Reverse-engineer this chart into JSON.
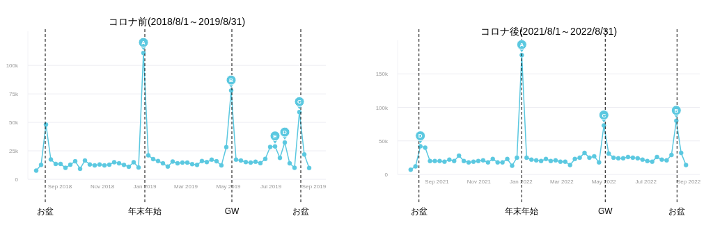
{
  "chart_data": [
    {
      "type": "line",
      "title": "コロナ前(2018/8/1～2019/8/31)",
      "grid": "y",
      "marker": "circle",
      "line_style": "solid",
      "xlim": [
        "2018-07-17",
        "2019-09-18"
      ],
      "ylim": [
        0,
        130000
      ],
      "xticks": [
        {
          "value": "2018-09-01",
          "label": "Sep 2018"
        },
        {
          "value": "2018-11-01",
          "label": "Nov 2018"
        },
        {
          "value": "2019-01-01",
          "label": "Jan 2019"
        },
        {
          "value": "2019-03-01",
          "label": "Mar 2019"
        },
        {
          "value": "2019-05-01",
          "label": "May 2019"
        },
        {
          "value": "2019-07-01",
          "label": "Jul 2019"
        },
        {
          "value": "2019-09-01",
          "label": "Sep 2019"
        }
      ],
      "yticks": [
        {
          "value": 0,
          "label": "0"
        },
        {
          "value": 25000,
          "label": "25k"
        },
        {
          "value": 50000,
          "label": "50k"
        },
        {
          "value": 75000,
          "label": "75k"
        },
        {
          "value": 100000,
          "label": "100k"
        }
      ],
      "x": [
        "2018-07-29",
        "2018-08-05",
        "2018-08-12",
        "2018-08-19",
        "2018-08-26",
        "2018-09-02",
        "2018-09-09",
        "2018-09-16",
        "2018-09-23",
        "2018-09-30",
        "2018-10-07",
        "2018-10-14",
        "2018-10-21",
        "2018-10-28",
        "2018-11-04",
        "2018-11-11",
        "2018-11-18",
        "2018-11-25",
        "2018-12-02",
        "2018-12-09",
        "2018-12-16",
        "2018-12-23",
        "2018-12-30",
        "2019-01-06",
        "2019-01-13",
        "2019-01-20",
        "2019-01-27",
        "2019-02-03",
        "2019-02-10",
        "2019-02-17",
        "2019-02-24",
        "2019-03-03",
        "2019-03-10",
        "2019-03-17",
        "2019-03-24",
        "2019-03-31",
        "2019-04-07",
        "2019-04-14",
        "2019-04-21",
        "2019-04-28",
        "2019-05-05",
        "2019-05-12",
        "2019-05-19",
        "2019-05-26",
        "2019-06-02",
        "2019-06-09",
        "2019-06-16",
        "2019-06-23",
        "2019-06-30",
        "2019-07-07",
        "2019-07-14",
        "2019-07-21",
        "2019-07-28",
        "2019-08-04",
        "2019-08-11",
        "2019-08-18",
        "2019-08-25"
      ],
      "series": [
        {
          "color": "#5bc8e0",
          "values": [
            7600,
            12600,
            48000,
            17400,
            13500,
            13500,
            10000,
            12800,
            15800,
            9200,
            16500,
            13000,
            12200,
            13000,
            12200,
            12800,
            15000,
            14000,
            12600,
            11000,
            15000,
            10300,
            111000,
            21000,
            17700,
            16000,
            14000,
            11200,
            15600,
            14000,
            14700,
            14700,
            13300,
            12600,
            16000,
            15100,
            17200,
            15800,
            12200,
            28200,
            78000,
            17200,
            16500,
            15100,
            14700,
            15400,
            14200,
            17900,
            28400,
            28900,
            18800,
            32300,
            14000,
            10100,
            59000,
            21800,
            9900
          ]
        }
      ],
      "ref_lines": [
        {
          "axis": "x",
          "value": "2018-08-11",
          "label": "お盆",
          "line_style": "dashed",
          "color": "#000000"
        },
        {
          "axis": "x",
          "value": "2019-01-01",
          "label": "年末年始",
          "line_style": "dashed",
          "color": "#000000"
        },
        {
          "axis": "x",
          "value": "2019-05-06",
          "label": "GW",
          "line_style": "dashed",
          "color": "#000000"
        },
        {
          "axis": "x",
          "value": "2019-08-13",
          "label": "お盆",
          "line_style": "dashed",
          "color": "#000000"
        }
      ],
      "annotations": [
        {
          "text": "A",
          "x": "2018-12-30",
          "y": 111000
        },
        {
          "text": "B",
          "x": "2019-05-05",
          "y": 78000
        },
        {
          "text": "E",
          "x": "2019-07-07",
          "y": 28900
        },
        {
          "text": "D",
          "x": "2019-07-21",
          "y": 32300
        },
        {
          "text": "C",
          "x": "2019-08-11",
          "y": 59000
        }
      ]
    },
    {
      "type": "line",
      "title": "コロナ後(2021/8/1～2022/8/31)",
      "grid": "y",
      "marker": "circle",
      "line_style": "solid",
      "xlim": [
        "2021-07-06",
        "2022-09-17"
      ],
      "ylim": [
        0,
        200000
      ],
      "xticks": [
        {
          "value": "2021-09-01",
          "label": "Sep 2021"
        },
        {
          "value": "2021-11-01",
          "label": "Nov 2021"
        },
        {
          "value": "2022-01-01",
          "label": "Jan 2022"
        },
        {
          "value": "2022-03-01",
          "label": "Mar 2022"
        },
        {
          "value": "2022-05-01",
          "label": "May 2022"
        },
        {
          "value": "2022-07-01",
          "label": "Jul 2022"
        },
        {
          "value": "2022-09-01",
          "label": "Sep 2022"
        }
      ],
      "yticks": [
        {
          "value": 0,
          "label": "0"
        },
        {
          "value": 50000,
          "label": "50k"
        },
        {
          "value": 100000,
          "label": "100k"
        },
        {
          "value": 150000,
          "label": "150k"
        }
      ],
      "x": [
        "2021-07-25",
        "2021-08-01",
        "2021-08-08",
        "2021-08-15",
        "2021-08-22",
        "2021-08-29",
        "2021-09-05",
        "2021-09-12",
        "2021-09-19",
        "2021-09-26",
        "2021-10-03",
        "2021-10-10",
        "2021-10-17",
        "2021-10-24",
        "2021-10-31",
        "2021-11-07",
        "2021-11-14",
        "2021-11-21",
        "2021-11-28",
        "2021-12-05",
        "2021-12-12",
        "2021-12-19",
        "2021-12-26",
        "2022-01-02",
        "2022-01-09",
        "2022-01-16",
        "2022-01-23",
        "2022-01-30",
        "2022-02-06",
        "2022-02-13",
        "2022-02-20",
        "2022-02-27",
        "2022-03-06",
        "2022-03-13",
        "2022-03-20",
        "2022-03-27",
        "2022-04-03",
        "2022-04-10",
        "2022-04-17",
        "2022-04-24",
        "2022-05-01",
        "2022-05-08",
        "2022-05-15",
        "2022-05-22",
        "2022-05-29",
        "2022-06-05",
        "2022-06-12",
        "2022-06-19",
        "2022-06-26",
        "2022-07-03",
        "2022-07-10",
        "2022-07-17",
        "2022-07-24",
        "2022-07-31",
        "2022-08-07",
        "2022-08-14",
        "2022-08-21",
        "2022-08-28"
      ],
      "series": [
        {
          "color": "#5bc8e0",
          "values": [
            7000,
            12000,
            42000,
            40000,
            20000,
            20000,
            20000,
            19000,
            22000,
            20000,
            28000,
            20000,
            18000,
            19000,
            20000,
            21000,
            18000,
            23000,
            18000,
            18000,
            23000,
            13000,
            25000,
            178000,
            25000,
            22000,
            21000,
            20000,
            23000,
            20000,
            21000,
            19000,
            19000,
            14000,
            23000,
            25000,
            32000,
            25000,
            27000,
            18000,
            73000,
            31000,
            25000,
            24000,
            24000,
            26000,
            25000,
            24000,
            22000,
            20000,
            19000,
            26000,
            22000,
            21000,
            29000,
            80000,
            32000,
            14000
          ]
        }
      ],
      "ref_lines": [
        {
          "axis": "x",
          "value": "2021-08-06",
          "label": "お盆",
          "line_style": "dashed",
          "color": "#000000"
        },
        {
          "axis": "x",
          "value": "2022-01-02",
          "label": "年末年始",
          "line_style": "dashed",
          "color": "#000000"
        },
        {
          "axis": "x",
          "value": "2022-05-03",
          "label": "GW",
          "line_style": "dashed",
          "color": "#000000"
        },
        {
          "axis": "x",
          "value": "2022-08-15",
          "label": "お盆",
          "line_style": "dashed",
          "color": "#000000"
        }
      ],
      "annotations": [
        {
          "text": "D",
          "x": "2021-08-08",
          "y": 42000
        },
        {
          "text": "A",
          "x": "2022-01-02",
          "y": 178000
        },
        {
          "text": "C",
          "x": "2022-05-01",
          "y": 73000
        },
        {
          "text": "B",
          "x": "2022-08-14",
          "y": 80000
        }
      ]
    }
  ]
}
